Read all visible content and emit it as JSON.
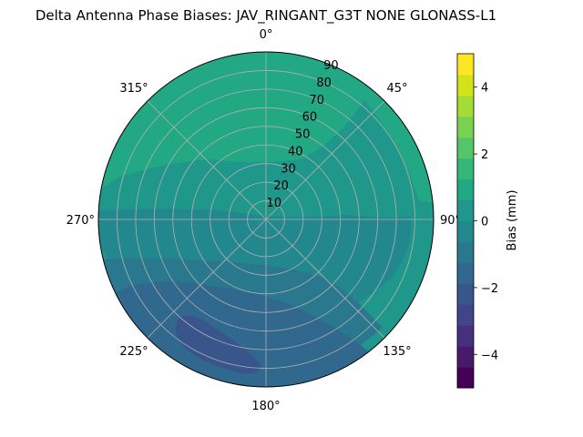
{
  "chart_data": {
    "type": "polar-contour",
    "title": "Delta Antenna Phase Biases: JAV_RINGANT_G3T NONE GLONASS-L1",
    "angular_ticks": [
      "0°",
      "45°",
      "90°",
      "135°",
      "180°",
      "225°",
      "270°",
      "315°"
    ],
    "radial_ticks": [
      "10",
      "20",
      "30",
      "40",
      "50",
      "60",
      "70",
      "80",
      "90"
    ],
    "radial_range": [
      0,
      90
    ],
    "colorbar": {
      "label": "Bias (mm)",
      "ticks": [
        "−4",
        "−2",
        "0",
        "2",
        "4"
      ],
      "range": [
        -5,
        5
      ],
      "levels": [
        -5,
        -4.375,
        -3.75,
        -3.125,
        -2.5,
        -1.875,
        -1.25,
        -0.625,
        0,
        0.625,
        1.25,
        1.875,
        2.5,
        3.125,
        3.75,
        4.375,
        5
      ],
      "band_colors": [
        "#440154",
        "#481a6c",
        "#472f7d",
        "#414487",
        "#39568c",
        "#31688e",
        "#2a788e",
        "#23888e",
        "#1f988b",
        "#22a884",
        "#35b779",
        "#54c568",
        "#7ad151",
        "#a5db36",
        "#d2e21b",
        "#fde725"
      ]
    },
    "regions": [
      {
        "description_level": "1.25 to 1.875",
        "color": "#22a884",
        "area": "north-half outer"
      },
      {
        "description_level": "0.625 to 1.25",
        "color": "#1f988b",
        "area": "center and mid ring"
      },
      {
        "description_level": "0 to 0.625",
        "color": "#23888e",
        "area": "ring around south"
      },
      {
        "description_level": "-0.625 to 0",
        "color": "#2a788e",
        "area": "south outer"
      },
      {
        "description_level": "-1.25 to -0.625",
        "color": "#31688e",
        "area": "south-west"
      },
      {
        "description_level": "-1.875 to -1.25",
        "color": "#39568c",
        "area": "small patch near 200°"
      }
    ],
    "grid": true
  }
}
